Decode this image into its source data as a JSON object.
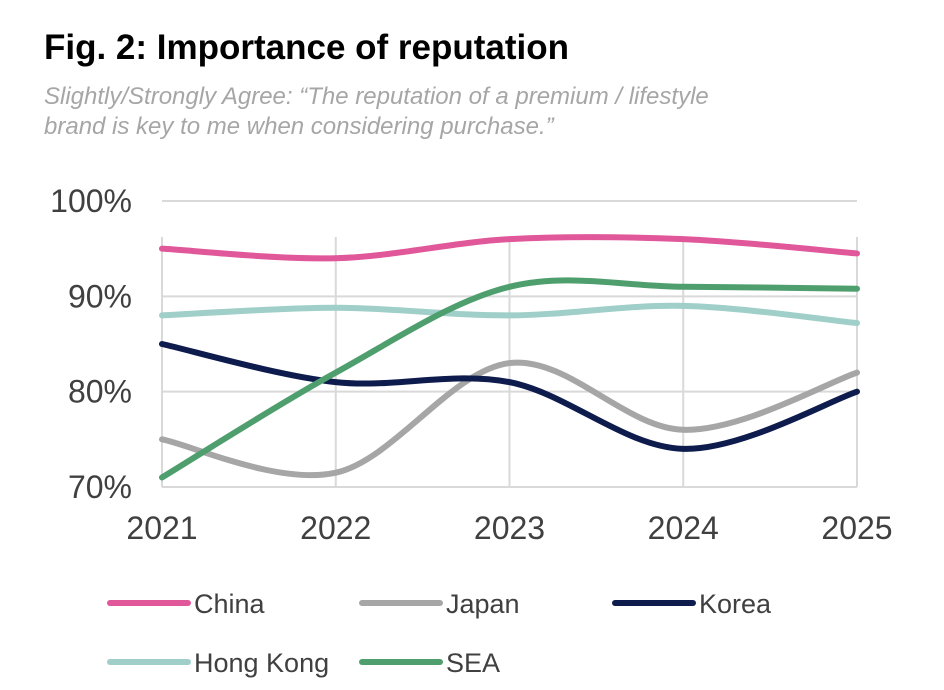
{
  "chart_data": {
    "type": "line",
    "title": "Fig. 2: Importance of reputation",
    "subtitle_lines": [
      "Slightly/Strongly Agree: “The reputation of a premium / lifestyle",
      "brand is key to me when considering purchase.”"
    ],
    "categories": [
      "2021",
      "2022",
      "2023",
      "2024",
      "2025"
    ],
    "ylim": [
      70,
      100
    ],
    "yticks": [
      {
        "value": 100,
        "label": "100%"
      },
      {
        "value": 90,
        "label": "90%"
      },
      {
        "value": 80,
        "label": "80%"
      },
      {
        "value": 70,
        "label": "70%"
      }
    ],
    "grid": true,
    "smooth": true,
    "legend_position": "bottom",
    "series": [
      {
        "name": "China",
        "color": "#e0579a",
        "values": [
          95,
          94,
          96,
          96,
          94.5
        ]
      },
      {
        "name": "Japan",
        "color": "#a6a6a6",
        "values": [
          75,
          71.5,
          83,
          76,
          82
        ]
      },
      {
        "name": "Korea",
        "color": "#0e1b4d",
        "values": [
          85,
          81,
          81,
          74,
          80
        ]
      },
      {
        "name": "Hong Kong",
        "color": "#9fcfc8",
        "values": [
          88,
          88.8,
          88,
          89,
          87.2
        ]
      },
      {
        "name": "SEA",
        "color": "#4f9f6e",
        "values": [
          71,
          82,
          91,
          91,
          90.8
        ]
      }
    ],
    "colors": {
      "grid": "#d9d9d9",
      "ticks": "#404040",
      "subtitle": "#a6a6a6"
    }
  }
}
